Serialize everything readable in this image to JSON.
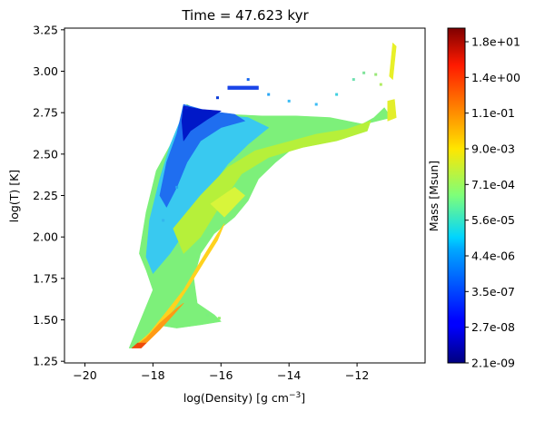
{
  "chart_data": {
    "type": "heatmap",
    "title": "Time = 47.623 kyr",
    "xlabel_base": "log(Density) [g cm",
    "xlabel_sup": "−3",
    "xlabel_close": "]",
    "ylabel": "log(T) [K]",
    "xlim": [
      -20.6,
      -10.0
    ],
    "ylim": [
      1.24,
      3.26
    ],
    "x_ticks": [
      -20,
      -18,
      -16,
      -14,
      -12
    ],
    "x_tick_labels": [
      "−20",
      "−18",
      "−16",
      "−14",
      "−12"
    ],
    "y_ticks": [
      1.25,
      1.5,
      1.75,
      2.0,
      2.25,
      2.5,
      2.75,
      3.0,
      3.25
    ],
    "y_tick_labels": [
      "1.25",
      "1.50",
      "1.75",
      "2.00",
      "2.25",
      "2.50",
      "2.75",
      "3.00",
      "3.25"
    ],
    "colorbar": {
      "label": "Mass [Msun]",
      "colormap": "jet",
      "tick_labels": [
        "2.1e-09",
        "2.7e-08",
        "3.5e-07",
        "4.4e-06",
        "5.6e-05",
        "7.1e-04",
        "9.0e-03",
        "1.1e-01",
        "1.4e+00",
        "1.8e+01"
      ]
    },
    "regions": [
      {
        "name": "main-phase-envelope",
        "color": "#7df07a",
        "points": [
          [
            -18.6,
            1.33
          ],
          [
            -18.2,
            1.4
          ],
          [
            -17.9,
            1.47
          ],
          [
            -17.3,
            1.45
          ],
          [
            -16.6,
            1.47
          ],
          [
            -16.0,
            1.49
          ],
          [
            -16.2,
            1.53
          ],
          [
            -16.7,
            1.6
          ],
          [
            -16.8,
            1.75
          ],
          [
            -16.6,
            1.9
          ],
          [
            -16.2,
            2.02
          ],
          [
            -15.6,
            2.12
          ],
          [
            -15.2,
            2.22
          ],
          [
            -14.9,
            2.35
          ],
          [
            -14.4,
            2.45
          ],
          [
            -13.8,
            2.55
          ],
          [
            -13.0,
            2.6
          ],
          [
            -12.2,
            2.64
          ],
          [
            -11.5,
            2.72
          ],
          [
            -11.2,
            2.78
          ],
          [
            -11.0,
            2.72
          ],
          [
            -11.8,
            2.68
          ],
          [
            -12.8,
            2.72
          ],
          [
            -13.8,
            2.73
          ],
          [
            -14.8,
            2.73
          ],
          [
            -15.8,
            2.74
          ],
          [
            -16.6,
            2.75
          ],
          [
            -17.0,
            2.8
          ],
          [
            -17.2,
            2.68
          ],
          [
            -17.5,
            2.55
          ],
          [
            -17.9,
            2.4
          ],
          [
            -18.2,
            2.15
          ],
          [
            -18.4,
            1.9
          ],
          [
            -18.2,
            1.8
          ],
          [
            -18.0,
            1.68
          ],
          [
            -18.5,
            1.43
          ],
          [
            -18.7,
            1.33
          ]
        ]
      },
      {
        "name": "hot-diffuse-lobe",
        "color": "#39c9f0",
        "points": [
          [
            -17.1,
            2.79
          ],
          [
            -16.2,
            2.74
          ],
          [
            -15.2,
            2.72
          ],
          [
            -14.6,
            2.66
          ],
          [
            -15.2,
            2.56
          ],
          [
            -15.8,
            2.44
          ],
          [
            -16.5,
            2.25
          ],
          [
            -17.0,
            2.05
          ],
          [
            -17.5,
            1.9
          ],
          [
            -18.0,
            1.78
          ],
          [
            -18.2,
            1.88
          ],
          [
            -18.1,
            2.1
          ],
          [
            -17.8,
            2.35
          ],
          [
            -17.5,
            2.55
          ],
          [
            -17.2,
            2.7
          ]
        ]
      },
      {
        "name": "low-mass-edge",
        "color": "#1f6ef0",
        "points": [
          [
            -17.1,
            2.8
          ],
          [
            -16.4,
            2.76
          ],
          [
            -15.6,
            2.74
          ],
          [
            -15.3,
            2.7
          ],
          [
            -16.0,
            2.66
          ],
          [
            -16.6,
            2.58
          ],
          [
            -17.0,
            2.45
          ],
          [
            -17.3,
            2.3
          ],
          [
            -17.6,
            2.18
          ],
          [
            -17.8,
            2.25
          ],
          [
            -17.6,
            2.45
          ],
          [
            -17.3,
            2.62
          ]
        ]
      },
      {
        "name": "minimum-mass-rim",
        "color": "#0018c8",
        "points": [
          [
            -17.1,
            2.79
          ],
          [
            -16.6,
            2.77
          ],
          [
            -16.0,
            2.76
          ],
          [
            -16.4,
            2.71
          ],
          [
            -16.9,
            2.64
          ],
          [
            -17.1,
            2.58
          ],
          [
            -17.15,
            2.7
          ]
        ]
      },
      {
        "name": "dense-ridge",
        "color": "#b6f03a",
        "points": [
          [
            -17.4,
            2.05
          ],
          [
            -16.6,
            2.25
          ],
          [
            -15.8,
            2.42
          ],
          [
            -15.0,
            2.52
          ],
          [
            -14.1,
            2.57
          ],
          [
            -13.2,
            2.62
          ],
          [
            -12.3,
            2.65
          ],
          [
            -11.6,
            2.7
          ],
          [
            -11.7,
            2.64
          ],
          [
            -12.6,
            2.58
          ],
          [
            -13.6,
            2.54
          ],
          [
            -14.6,
            2.48
          ],
          [
            -15.4,
            2.38
          ],
          [
            -16.0,
            2.2
          ],
          [
            -16.6,
            2.0
          ],
          [
            -17.1,
            1.9
          ]
        ]
      },
      {
        "name": "compression-track",
        "color": "#ffd21e",
        "points": [
          [
            -18.6,
            1.33
          ],
          [
            -18.1,
            1.42
          ],
          [
            -17.6,
            1.55
          ],
          [
            -17.1,
            1.68
          ],
          [
            -16.7,
            1.82
          ],
          [
            -16.4,
            1.92
          ],
          [
            -16.1,
            2.02
          ],
          [
            -15.9,
            2.08
          ],
          [
            -16.1,
            1.98
          ],
          [
            -16.5,
            1.85
          ],
          [
            -16.95,
            1.7
          ],
          [
            -17.4,
            1.56
          ],
          [
            -17.9,
            1.44
          ],
          [
            -18.3,
            1.37
          ]
        ]
      },
      {
        "name": "cold-dense-tail",
        "color": "#ff9a14",
        "points": [
          [
            -18.6,
            1.33
          ],
          [
            -18.2,
            1.36
          ],
          [
            -17.8,
            1.44
          ],
          [
            -17.4,
            1.53
          ],
          [
            -17.1,
            1.6
          ],
          [
            -17.3,
            1.57
          ],
          [
            -17.8,
            1.48
          ],
          [
            -18.2,
            1.39
          ]
        ]
      },
      {
        "name": "peak-cell",
        "color": "#ee4a0a",
        "points": [
          [
            -18.62,
            1.33
          ],
          [
            -18.35,
            1.33
          ],
          [
            -18.2,
            1.36
          ],
          [
            -18.45,
            1.36
          ]
        ]
      },
      {
        "name": "warm-pocket",
        "color": "#d8f53a",
        "points": [
          [
            -16.3,
            2.2
          ],
          [
            -15.6,
            2.3
          ],
          [
            -15.3,
            2.25
          ],
          [
            -15.9,
            2.12
          ]
        ]
      },
      {
        "name": "hot-branch",
        "color": "#e3ee2c",
        "points": [
          [
            -11.1,
            2.82
          ],
          [
            -10.9,
            2.83
          ],
          [
            -10.85,
            2.72
          ],
          [
            -11.1,
            2.7
          ]
        ]
      },
      {
        "name": "hot-scatter-column",
        "color": "#e8f028",
        "points": [
          [
            -10.95,
            3.17
          ],
          [
            -10.85,
            3.15
          ],
          [
            -10.95,
            2.95
          ],
          [
            -11.05,
            2.97
          ]
        ]
      },
      {
        "name": "hot-low-density-strip",
        "color": "#1a44e8",
        "points": [
          [
            -15.8,
            2.91
          ],
          [
            -14.9,
            2.91
          ],
          [
            -14.9,
            2.89
          ],
          [
            -15.8,
            2.89
          ]
        ]
      }
    ],
    "scatter_points": [
      {
        "x": -14.0,
        "y": 2.82,
        "color": "#3bbcf5"
      },
      {
        "x": -13.2,
        "y": 2.8,
        "color": "#3bbcf5"
      },
      {
        "x": -12.6,
        "y": 2.86,
        "color": "#40d0e0"
      },
      {
        "x": -12.1,
        "y": 2.95,
        "color": "#6fe0b0"
      },
      {
        "x": -11.8,
        "y": 2.99,
        "color": "#7fe39a"
      },
      {
        "x": -11.45,
        "y": 2.98,
        "color": "#9ae878"
      },
      {
        "x": -11.3,
        "y": 2.92,
        "color": "#b0ec60"
      },
      {
        "x": -14.6,
        "y": 2.86,
        "color": "#2aa6f5"
      },
      {
        "x": -15.2,
        "y": 2.95,
        "color": "#1566f0"
      },
      {
        "x": -16.1,
        "y": 2.84,
        "color": "#0a3ad8"
      },
      {
        "x": -17.0,
        "y": 2.78,
        "color": "#0b1fcf"
      },
      {
        "x": -17.3,
        "y": 2.3,
        "color": "#26a2f0"
      },
      {
        "x": -17.7,
        "y": 2.1,
        "color": "#33b6ee"
      },
      {
        "x": -16.4,
        "y": 1.53,
        "color": "#7bee7e"
      },
      {
        "x": -16.05,
        "y": 1.51,
        "color": "#93f06c"
      }
    ]
  }
}
